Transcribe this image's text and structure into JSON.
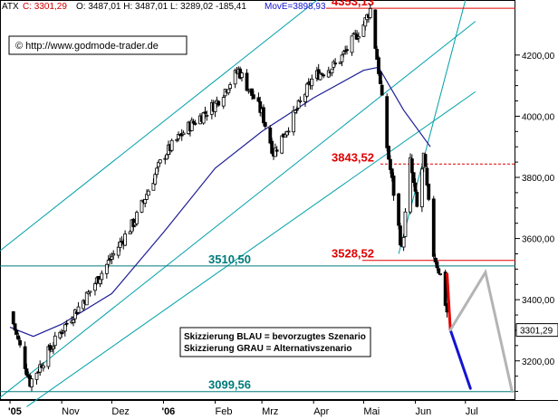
{
  "header": {
    "symbol": "ATX",
    "close_label": "C: 3301,29",
    "ohlc_text": "O: 3487,01 H: 3487,01 L: 3289,02 -185,41",
    "ma_label": "MovE=3898,93"
  },
  "copyright": "© http://www.godmode-trader.de",
  "legend_box": {
    "line1": "Skizzierung BLAU = bevorzugtes Szenario",
    "line2": "Skizzierung GRAU = Alternativszenario"
  },
  "price_tag": "3301,29",
  "colors": {
    "candles": "#000000",
    "moving_average": "#1e1e96",
    "channels": "#00a0a8",
    "resistance": "#e00000",
    "support": "#007a7a",
    "scenario_blue": "#1414d2",
    "scenario_grey": "#b4b4b4",
    "header_red": "#d00000"
  },
  "chart_data": {
    "type": "candlestick",
    "title": "ATX",
    "y_axis": {
      "position": "right",
      "ylim": [
        3075,
        4380
      ],
      "ticks": [
        3200,
        3400,
        3600,
        3800,
        4000,
        4200
      ],
      "tick_labels": [
        "3200,00",
        "3400,00",
        "3600,00",
        "3800,00",
        "4000,00",
        "4200,00"
      ]
    },
    "x_axis": {
      "tick_labels": [
        "'05",
        "Nov",
        "Dez",
        "'06",
        "Feb",
        "Mrz",
        "Apr",
        "Mai",
        "Jun",
        "Jul"
      ]
    },
    "grid": false,
    "price_path": [
      {
        "date": "2005-10-01",
        "price": 3360
      },
      {
        "date": "2005-10-13",
        "price": 3130
      },
      {
        "date": "2005-11-01",
        "price": 3300
      },
      {
        "date": "2005-11-17",
        "price": 3420
      },
      {
        "date": "2005-12-01",
        "price": 3540
      },
      {
        "date": "2005-12-15",
        "price": 3660
      },
      {
        "date": "2006-01-01",
        "price": 3870
      },
      {
        "date": "2006-01-15",
        "price": 3960
      },
      {
        "date": "2006-02-01",
        "price": 4040
      },
      {
        "date": "2006-02-15",
        "price": 4150
      },
      {
        "date": "2006-03-01",
        "price": 4010
      },
      {
        "date": "2006-03-08",
        "price": 3880
      },
      {
        "date": "2006-03-20",
        "price": 4000
      },
      {
        "date": "2006-04-01",
        "price": 4130
      },
      {
        "date": "2006-04-15",
        "price": 4170
      },
      {
        "date": "2006-05-01",
        "price": 4300
      },
      {
        "date": "2006-05-05",
        "price": 4350
      },
      {
        "date": "2006-05-10",
        "price": 4150
      },
      {
        "date": "2006-05-15",
        "price": 3900
      },
      {
        "date": "2006-05-19",
        "price": 3750
      },
      {
        "date": "2006-05-24",
        "price": 3560
      },
      {
        "date": "2006-05-29",
        "price": 3850
      },
      {
        "date": "2006-06-02",
        "price": 3700
      },
      {
        "date": "2006-06-06",
        "price": 3870
      },
      {
        "date": "2006-06-12",
        "price": 3550
      },
      {
        "date": "2006-06-16",
        "price": 3480
      },
      {
        "date": "2006-06-22",
        "price": 3301
      }
    ],
    "moving_average_path": [
      {
        "date": "2005-10-01",
        "price": 3310
      },
      {
        "date": "2005-10-15",
        "price": 3280
      },
      {
        "date": "2005-11-01",
        "price": 3320
      },
      {
        "date": "2005-12-01",
        "price": 3420
      },
      {
        "date": "2006-01-01",
        "price": 3620
      },
      {
        "date": "2006-02-01",
        "price": 3830
      },
      {
        "date": "2006-03-01",
        "price": 3950
      },
      {
        "date": "2006-04-01",
        "price": 4060
      },
      {
        "date": "2006-05-01",
        "price": 4150
      },
      {
        "date": "2006-05-10",
        "price": 4160
      },
      {
        "date": "2006-05-25",
        "price": 4020
      },
      {
        "date": "2006-06-10",
        "price": 3900
      }
    ],
    "horizontal_levels": [
      {
        "value": 4353.13,
        "label": "4353,13",
        "style": "resistance"
      },
      {
        "value": 3843.52,
        "label": "3843,52",
        "style": "resistance-dashed"
      },
      {
        "value": 3528.52,
        "label": "3528,52",
        "style": "resistance"
      },
      {
        "value": 3510.5,
        "label": "3510,50",
        "style": "support"
      },
      {
        "value": 3099.56,
        "label": "3099,56",
        "style": "support"
      }
    ],
    "trend_channels": [
      {
        "from": {
          "date": "2005-09-25",
          "price": 3560
        },
        "to": {
          "date": "2006-05-01",
          "price": 4500
        }
      },
      {
        "from": {
          "date": "2005-09-25",
          "price": 3080
        },
        "to": {
          "date": "2006-07-07",
          "price": 4310
        }
      },
      {
        "from": {
          "date": "2005-10-11",
          "price": 3050
        },
        "to": {
          "date": "2006-07-07",
          "price": 4080
        }
      },
      {
        "from": {
          "date": "2006-05-22",
          "price": 3550
        },
        "to": {
          "date": "2006-07-02",
          "price": 4400
        }
      }
    ],
    "scenarios": [
      {
        "name": "Skizzierung BLAU",
        "points": [
          {
            "date": "2006-06-22",
            "price": 3301
          },
          {
            "date": "2006-07-04",
            "price": 3110
          }
        ]
      },
      {
        "name": "Skizzierung GRAU",
        "points": [
          {
            "date": "2006-06-22",
            "price": 3301
          },
          {
            "date": "2006-07-13",
            "price": 3490
          },
          {
            "date": "2006-07-29",
            "price": 3100
          }
        ]
      }
    ],
    "last_drop": {
      "from": {
        "date": "2006-06-20",
        "price": 3487
      },
      "to": {
        "date": "2006-06-22",
        "price": 3301
      }
    }
  }
}
